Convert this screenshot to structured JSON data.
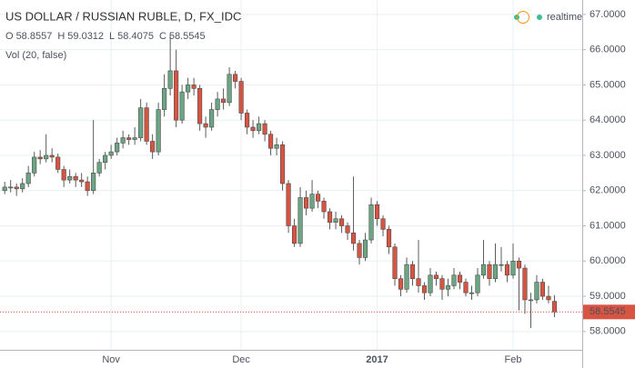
{
  "chart_data": {
    "type": "candlestick",
    "title": "US DOLLAR / RUSSIAN RUBLE, D, FX_IDC",
    "legend_labels": [
      "O",
      "H",
      "L",
      "C"
    ],
    "indicator": "Vol (20, false)",
    "status": "realtime",
    "up_color": "#6ba583",
    "down_color": "#d75442",
    "xlim": [
      -0.8,
      97.7
    ],
    "xticks": [
      {
        "value": 18,
        "label": "Nov"
      },
      {
        "value": 40,
        "label": "Dec"
      },
      {
        "value": 63,
        "label": "2017"
      },
      {
        "value": 86,
        "label": "Feb"
      }
    ],
    "ylim": [
      57.48,
      67.41
    ],
    "yticks": [
      {
        "value": 58,
        "label": "58.0000"
      },
      {
        "value": 59,
        "label": "59.0000"
      },
      {
        "value": 60,
        "label": "60.0000"
      },
      {
        "value": 61,
        "label": "61.0000"
      },
      {
        "value": 62,
        "label": "62.0000"
      },
      {
        "value": 63,
        "label": "63.0000"
      },
      {
        "value": 64,
        "label": "64.0000"
      },
      {
        "value": 65,
        "label": "65.0000"
      },
      {
        "value": 66,
        "label": "66.0000"
      },
      {
        "value": 67,
        "label": "67.0000"
      }
    ],
    "grid": true,
    "ohlc": [
      [
        62.0,
        62.25,
        61.9,
        62.1
      ],
      [
        62.1,
        62.3,
        61.95,
        62.1
      ],
      [
        62.1,
        62.2,
        61.85,
        62.05
      ],
      [
        62.05,
        62.35,
        61.95,
        62.2
      ],
      [
        62.2,
        62.7,
        62.1,
        62.5
      ],
      [
        62.5,
        63.1,
        62.4,
        62.95
      ],
      [
        62.95,
        63.15,
        62.75,
        62.9
      ],
      [
        62.9,
        63.6,
        62.8,
        63.0
      ],
      [
        63.0,
        63.2,
        62.8,
        62.95
      ],
      [
        62.95,
        63.05,
        62.5,
        62.6
      ],
      [
        62.6,
        62.7,
        62.1,
        62.3
      ],
      [
        62.3,
        62.6,
        62.2,
        62.4
      ],
      [
        62.4,
        62.5,
        62.1,
        62.3
      ],
      [
        62.3,
        62.5,
        62.1,
        62.25
      ],
      [
        62.25,
        62.4,
        61.85,
        62.0
      ],
      [
        62.0,
        64.0,
        61.9,
        62.5
      ],
      [
        62.5,
        62.9,
        62.4,
        62.8
      ],
      [
        62.8,
        63.1,
        62.6,
        63.0
      ],
      [
        63.0,
        63.3,
        62.9,
        63.1
      ],
      [
        63.1,
        63.5,
        63.0,
        63.35
      ],
      [
        63.35,
        63.7,
        63.2,
        63.5
      ],
      [
        63.5,
        63.6,
        63.3,
        63.45
      ],
      [
        63.45,
        63.8,
        63.3,
        63.5
      ],
      [
        63.5,
        64.6,
        63.4,
        64.35
      ],
      [
        64.35,
        64.5,
        63.3,
        63.4
      ],
      [
        63.4,
        63.6,
        62.9,
        63.1
      ],
      [
        63.1,
        64.5,
        63.0,
        64.3
      ],
      [
        64.3,
        65.3,
        64.1,
        64.9
      ],
      [
        64.9,
        66.4,
        64.7,
        65.4
      ],
      [
        65.4,
        66.0,
        63.8,
        64.0
      ],
      [
        64.0,
        65.0,
        63.9,
        64.8
      ],
      [
        64.8,
        65.2,
        64.6,
        65.0
      ],
      [
        65.0,
        65.2,
        64.7,
        64.9
      ],
      [
        64.9,
        65.0,
        63.7,
        63.9
      ],
      [
        63.9,
        64.1,
        63.5,
        63.8
      ],
      [
        63.8,
        64.5,
        63.7,
        64.3
      ],
      [
        64.3,
        64.8,
        64.1,
        64.6
      ],
      [
        64.6,
        64.9,
        64.3,
        64.5
      ],
      [
        64.5,
        65.5,
        64.4,
        65.3
      ],
      [
        65.3,
        65.4,
        64.9,
        65.1
      ],
      [
        65.1,
        65.2,
        64.0,
        64.2
      ],
      [
        64.2,
        64.3,
        63.6,
        63.8
      ],
      [
        63.8,
        64.0,
        63.5,
        63.7
      ],
      [
        63.7,
        64.1,
        63.6,
        63.9
      ],
      [
        63.9,
        64.0,
        63.4,
        63.6
      ],
      [
        63.6,
        63.7,
        63.0,
        63.2
      ],
      [
        63.2,
        63.5,
        63.0,
        63.3
      ],
      [
        63.3,
        63.4,
        62.0,
        62.2
      ],
      [
        62.2,
        62.3,
        60.8,
        61.0
      ],
      [
        61.0,
        61.2,
        60.4,
        60.5
      ],
      [
        60.5,
        62.1,
        60.4,
        61.8
      ],
      [
        61.8,
        62.0,
        61.3,
        61.5
      ],
      [
        61.5,
        62.3,
        61.4,
        61.9
      ],
      [
        61.9,
        62.0,
        61.5,
        61.7
      ],
      [
        61.7,
        61.8,
        61.2,
        61.4
      ],
      [
        61.4,
        61.5,
        60.9,
        61.1
      ],
      [
        61.1,
        61.4,
        60.9,
        61.2
      ],
      [
        61.2,
        61.3,
        60.8,
        61.0
      ],
      [
        61.0,
        61.1,
        60.6,
        60.8
      ],
      [
        60.8,
        62.4,
        60.3,
        60.5
      ],
      [
        60.5,
        60.6,
        59.9,
        60.1
      ],
      [
        60.1,
        60.8,
        60.0,
        60.6
      ],
      [
        60.6,
        61.8,
        60.5,
        61.6
      ],
      [
        61.6,
        61.7,
        61.0,
        61.2
      ],
      [
        61.2,
        61.3,
        60.7,
        60.9
      ],
      [
        60.9,
        61.0,
        60.2,
        60.4
      ],
      [
        60.4,
        60.5,
        59.3,
        59.5
      ],
      [
        59.5,
        59.6,
        59.0,
        59.2
      ],
      [
        59.2,
        60.1,
        59.1,
        59.9
      ],
      [
        59.9,
        60.0,
        59.3,
        59.5
      ],
      [
        59.5,
        60.6,
        59.1,
        59.3
      ],
      [
        59.3,
        59.4,
        58.9,
        59.1
      ],
      [
        59.1,
        59.8,
        59.0,
        59.6
      ],
      [
        59.6,
        59.7,
        59.3,
        59.5
      ],
      [
        59.5,
        59.6,
        58.9,
        59.2
      ],
      [
        59.2,
        59.5,
        59.0,
        59.3
      ],
      [
        59.3,
        59.8,
        59.2,
        59.6
      ],
      [
        59.6,
        59.7,
        59.2,
        59.4
      ],
      [
        59.4,
        59.5,
        59.0,
        59.1
      ],
      [
        59.1,
        59.3,
        58.9,
        59.1
      ],
      [
        59.1,
        59.8,
        59.0,
        59.6
      ],
      [
        59.6,
        60.6,
        59.5,
        59.9
      ],
      [
        59.9,
        60.0,
        59.3,
        59.5
      ],
      [
        59.5,
        60.5,
        59.4,
        59.9
      ],
      [
        59.9,
        60.4,
        59.7,
        59.9
      ],
      [
        59.9,
        60.0,
        59.4,
        59.6
      ],
      [
        59.6,
        60.5,
        59.5,
        60.0
      ],
      [
        60.0,
        60.1,
        58.6,
        59.8
      ],
      [
        59.8,
        59.9,
        58.5,
        58.9
      ],
      [
        58.9,
        59.1,
        58.1,
        58.9
      ],
      [
        58.9,
        59.6,
        58.8,
        59.4
      ],
      [
        59.4,
        59.5,
        58.9,
        59.0
      ],
      [
        59.0,
        59.3,
        58.8,
        58.9
      ],
      [
        58.8557,
        59.0312,
        58.4075,
        58.5545
      ]
    ]
  }
}
